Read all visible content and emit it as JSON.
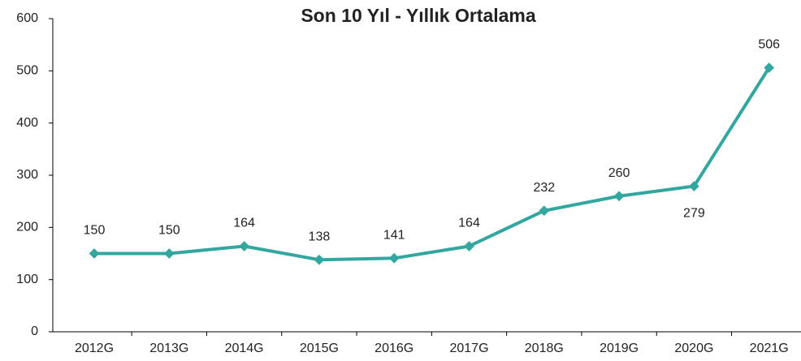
{
  "chart_data": {
    "type": "line",
    "title": "Son 10 Yıl - Yıllık Ortalama",
    "categories": [
      "2012G",
      "2013G",
      "2014G",
      "2015G",
      "2016G",
      "2017G",
      "2018G",
      "2019G",
      "2020G",
      "2021G"
    ],
    "series": [
      {
        "name": "Yıllık Ortalama",
        "color": "#33a79f",
        "values": [
          150,
          150,
          164,
          138,
          141,
          164,
          232,
          260,
          279,
          506
        ]
      }
    ],
    "ylim": [
      0,
      600
    ],
    "yticks": [
      0,
      100,
      200,
      300,
      400,
      500,
      600
    ],
    "grid": false
  }
}
